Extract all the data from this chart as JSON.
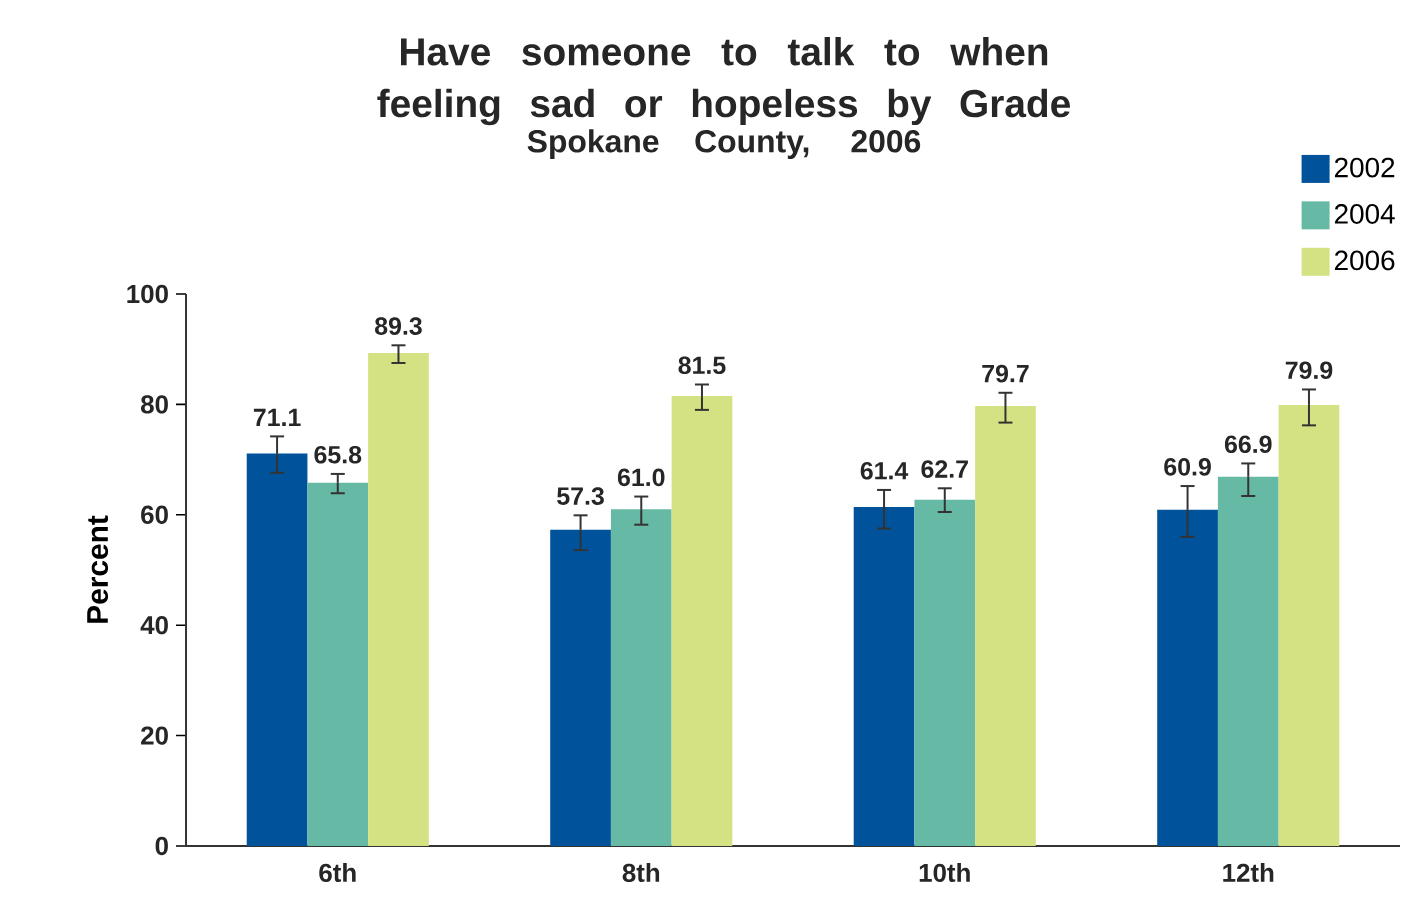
{
  "chart_data": {
    "type": "bar",
    "title": "Have someone to talk to when feeling sad or hopeless by Grade",
    "subtitle": "Spokane County, 2006",
    "ylabel": "Percent",
    "categories": [
      "6th",
      "8th",
      "10th",
      "12th"
    ],
    "series": [
      {
        "name": "2002",
        "color": "#00529b",
        "values": [
          71.1,
          57.3,
          61.4,
          60.9
        ],
        "value_labels": [
          "71.1",
          "57.3",
          "61.4",
          "60.9"
        ],
        "errors": [
          [
            67.6,
            74.2
          ],
          [
            53.6,
            59.9
          ],
          [
            57.5,
            64.5
          ],
          [
            56.0,
            65.2
          ]
        ]
      },
      {
        "name": "2004",
        "color": "#66b9a5",
        "values": [
          65.8,
          61.0,
          62.7,
          66.9
        ],
        "value_labels": [
          "65.8",
          "61.0",
          "62.7",
          "66.9"
        ],
        "errors": [
          [
            63.9,
            67.4
          ],
          [
            58.2,
            63.3
          ],
          [
            60.5,
            64.8
          ],
          [
            63.4,
            69.3
          ]
        ]
      },
      {
        "name": "2006",
        "color": "#d5e283",
        "values": [
          89.3,
          81.5,
          79.7,
          79.9
        ],
        "value_labels": [
          "89.3",
          "81.5",
          "79.7",
          "79.9"
        ],
        "errors": [
          [
            87.5,
            90.7
          ],
          [
            79.0,
            83.6
          ],
          [
            76.7,
            82.1
          ],
          [
            76.2,
            82.7
          ]
        ]
      }
    ],
    "ylim": [
      0,
      100
    ],
    "yticks": [
      0,
      20,
      40,
      60,
      80,
      100
    ],
    "grid": false,
    "legend": "top right"
  }
}
